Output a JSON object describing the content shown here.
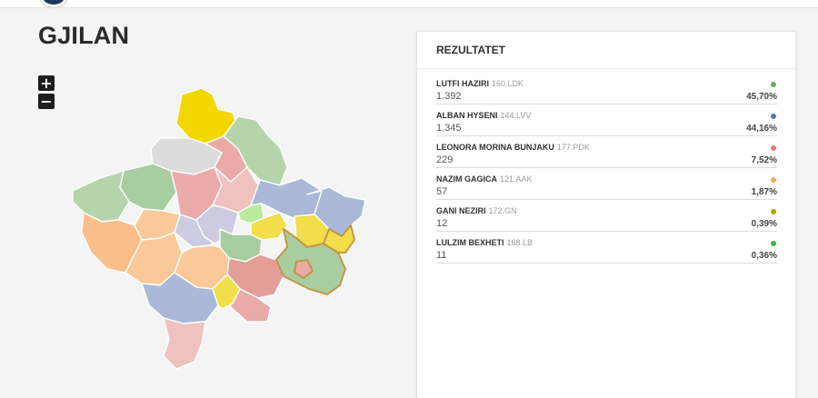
{
  "page": {
    "title": "GJILAN"
  },
  "map": {
    "zoom_in_label": "+",
    "zoom_out_label": "−",
    "municipality_colors": {
      "north_yellow": "#f2d800",
      "gray": "#dcdcdc",
      "green_light": "#b5d4ac",
      "green_mid": "#a8cda0",
      "pink": "#e9aaa8",
      "pink_light": "#efc2c0",
      "red_mid": "#e39e9a",
      "blue_gray": "#a9b9d7",
      "lavender": "#cccbe0",
      "orange": "#f9be8a",
      "orange_light": "#fbc89a",
      "bright_green": "#b8ec9c",
      "yellow": "#f2dd4a"
    }
  },
  "results": {
    "heading": "REZULTATET",
    "candidates": [
      {
        "name": "LUTFI HAZIRI",
        "party": "160.LDK",
        "votes": "1.392",
        "percent": "45,70%",
        "color": "#6aaa64"
      },
      {
        "name": "ALBAN HYSENI",
        "party": "144.LVV",
        "votes": "1.345",
        "percent": "44,16%",
        "color": "#5a76a8"
      },
      {
        "name": "LEONORA MORINA BUNJAKU",
        "party": "177.PDK",
        "votes": "229",
        "percent": "7,52%",
        "color": "#df7575"
      },
      {
        "name": "NAZIM GAGICA",
        "party": "121.AAK",
        "votes": "57",
        "percent": "1,87%",
        "color": "#f5a864"
      },
      {
        "name": "GANI NEZIRI",
        "party": "172.GN",
        "votes": "12",
        "percent": "0,39%",
        "color": "#a3a800"
      },
      {
        "name": "LULZIM BEXHETI",
        "party": "168.LB",
        "votes": "11",
        "percent": "0,36%",
        "color": "#3eb53e"
      }
    ]
  }
}
